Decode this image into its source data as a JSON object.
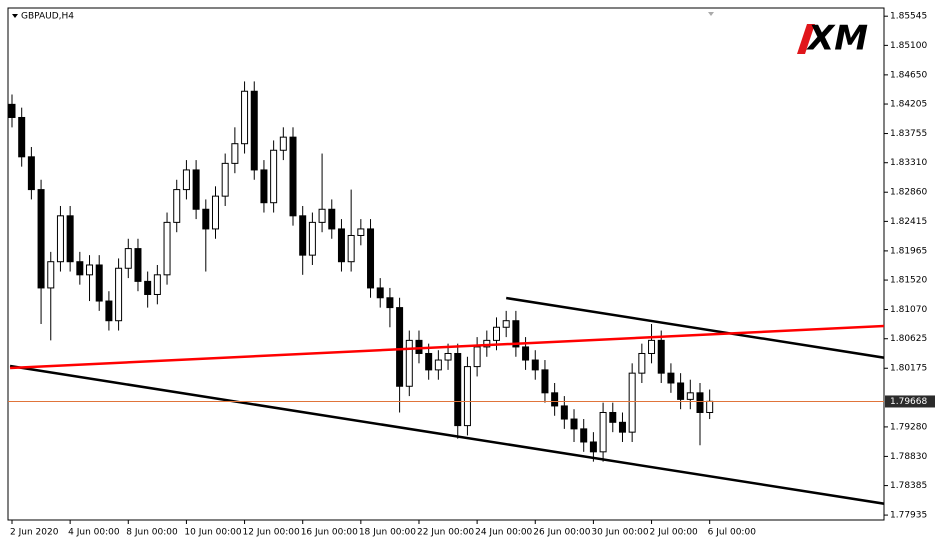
{
  "chart_data": {
    "type": "candlestick",
    "title": "GBPAUD,H4",
    "logo": "XM",
    "categories": [
      "2 Jun 2020",
      null,
      null,
      null,
      null,
      null,
      "4 Jun 00:00",
      null,
      null,
      null,
      null,
      null,
      "8 Jun 00:00",
      null,
      null,
      null,
      null,
      null,
      "10 Jun 00:00",
      null,
      null,
      null,
      null,
      null,
      "12 Jun 00:00",
      null,
      null,
      null,
      null,
      null,
      "16 Jun 00:00",
      null,
      null,
      null,
      null,
      null,
      "18 Jun 00:00",
      null,
      null,
      null,
      null,
      null,
      "22 Jun 00:00",
      null,
      null,
      null,
      null,
      null,
      "24 Jun 00:00",
      null,
      null,
      null,
      null,
      null,
      "26 Jun 00:00",
      null,
      null,
      null,
      null,
      null,
      "30 Jun 00:00",
      null,
      null,
      null,
      null,
      null,
      "2 Jul 00:00",
      null,
      null,
      null,
      null,
      null,
      "6 Jul 00:00"
    ],
    "open": [
      1.842,
      1.84,
      1.834,
      1.829,
      1.814,
      1.818,
      1.825,
      1.818,
      1.816,
      1.8175,
      1.812,
      1.809,
      1.817,
      1.82,
      1.815,
      1.813,
      1.816,
      1.824,
      1.829,
      1.832,
      1.826,
      1.823,
      1.828,
      1.833,
      1.836,
      1.844,
      1.832,
      1.827,
      1.835,
      1.837,
      1.825,
      1.819,
      1.824,
      1.826,
      1.823,
      1.818,
      1.822,
      1.823,
      1.814,
      1.8125,
      1.811,
      1.799,
      1.806,
      1.804,
      1.8015,
      1.803,
      1.804,
      1.793,
      1.802,
      1.805,
      1.806,
      1.808,
      1.809,
      1.805,
      1.803,
      1.8015,
      1.798,
      1.796,
      1.794,
      1.7925,
      1.7905,
      1.789,
      1.795,
      1.7935,
      1.792,
      1.801,
      1.804,
      1.806,
      1.801,
      1.7995,
      1.797,
      1.798,
      1.795
    ],
    "high": [
      1.8435,
      1.8415,
      1.8355,
      1.8305,
      1.8195,
      1.8265,
      1.8265,
      1.8195,
      1.819,
      1.819,
      1.8135,
      1.8185,
      1.8215,
      1.8215,
      1.8165,
      1.8175,
      1.8255,
      1.8305,
      1.8335,
      1.8335,
      1.8275,
      1.8295,
      1.8345,
      1.8385,
      1.8455,
      1.8455,
      1.8335,
      1.8365,
      1.8385,
      1.8385,
      1.8265,
      1.8255,
      1.8345,
      1.8275,
      1.8245,
      1.829,
      1.8245,
      1.8245,
      1.8155,
      1.814,
      1.8125,
      1.8075,
      1.8075,
      1.8055,
      1.8045,
      1.8055,
      1.8055,
      1.8035,
      1.8065,
      1.8075,
      1.8095,
      1.8105,
      1.8105,
      1.8065,
      1.8045,
      1.803,
      1.7995,
      1.7975,
      1.7955,
      1.794,
      1.792,
      1.7965,
      1.7965,
      1.795,
      1.8025,
      1.8055,
      1.8085,
      1.8075,
      1.8025,
      1.801,
      1.8,
      1.7995,
      1.7985
    ],
    "low": [
      1.8385,
      1.8325,
      1.8275,
      1.8085,
      1.806,
      1.8165,
      1.8165,
      1.8145,
      1.812,
      1.8105,
      1.8075,
      1.8075,
      1.8155,
      1.8135,
      1.811,
      1.8115,
      1.8145,
      1.8225,
      1.8275,
      1.8245,
      1.8165,
      1.8215,
      1.8265,
      1.8315,
      1.8345,
      1.8305,
      1.8255,
      1.8255,
      1.8335,
      1.8235,
      1.816,
      1.8175,
      1.8225,
      1.8215,
      1.8165,
      1.8165,
      1.8205,
      1.8125,
      1.811,
      1.808,
      1.795,
      1.7975,
      1.8025,
      1.8,
      1.8,
      1.8015,
      1.791,
      1.7915,
      1.8005,
      1.8035,
      1.8045,
      1.8065,
      1.8035,
      1.8015,
      1.8,
      1.7965,
      1.7945,
      1.7925,
      1.7905,
      1.789,
      1.7875,
      1.7875,
      1.792,
      1.7905,
      1.7905,
      1.7995,
      1.8025,
      1.7995,
      1.798,
      1.7955,
      1.7955,
      1.79,
      1.794
    ],
    "close": [
      1.84,
      1.834,
      1.829,
      1.814,
      1.818,
      1.825,
      1.818,
      1.816,
      1.8175,
      1.812,
      1.809,
      1.817,
      1.82,
      1.815,
      1.813,
      1.816,
      1.824,
      1.829,
      1.832,
      1.826,
      1.823,
      1.828,
      1.833,
      1.836,
      1.844,
      1.832,
      1.827,
      1.835,
      1.837,
      1.825,
      1.819,
      1.824,
      1.826,
      1.823,
      1.818,
      1.822,
      1.823,
      1.814,
      1.8125,
      1.811,
      1.799,
      1.806,
      1.804,
      1.8015,
      1.803,
      1.804,
      1.793,
      1.802,
      1.805,
      1.806,
      1.808,
      1.809,
      1.805,
      1.803,
      1.8015,
      1.798,
      1.796,
      1.794,
      1.7925,
      1.7905,
      1.789,
      1.795,
      1.7935,
      1.792,
      1.801,
      1.804,
      1.806,
      1.801,
      1.7995,
      1.797,
      1.798,
      1.795,
      1.7967
    ],
    "up_color": "#ffffff",
    "down_color": "#000000",
    "ylim": [
      1.7786,
      1.8567
    ],
    "yticks": [
      1.85545,
      {
        "value": 1.851,
        "label": "1.85100"
      },
      {
        "value": 1.8465,
        "label": "1.84650"
      },
      1.84205,
      1.83755,
      {
        "value": 1.8331,
        "label": "1.83310"
      },
      {
        "value": 1.8286,
        "label": "1.82860"
      },
      1.82415,
      1.81965,
      {
        "value": 1.8152,
        "label": "1.81520"
      },
      {
        "value": 1.8107,
        "label": "1.81070"
      },
      1.80625,
      1.80175,
      {
        "value": 1.7928,
        "label": "1.79280"
      },
      {
        "value": 1.7883,
        "label": "1.78830"
      },
      1.78385,
      1.77935
    ],
    "current_price": 1.79668,
    "current_price_color": "#e0743a",
    "trendlines": [
      {
        "color": "#000000",
        "x": [
          51,
          90.2
        ],
        "y": [
          1.81246,
          1.80331
        ]
      },
      {
        "color": "#000000",
        "x": [
          -0.2,
          90.2
        ],
        "y": [
          1.80209,
          1.78104
        ]
      },
      {
        "color": "#ff0000",
        "x": [
          -0.2,
          90.2
        ],
        "y": [
          1.80179,
          1.8082
        ]
      }
    ]
  }
}
